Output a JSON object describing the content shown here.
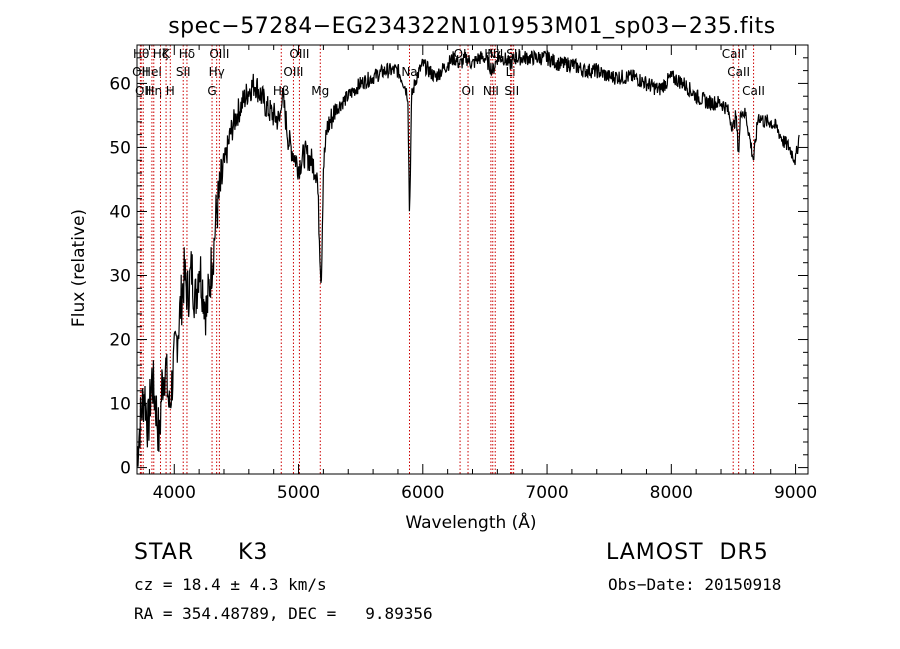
{
  "chart_data": {
    "type": "line",
    "title": "spec−57284−EG234322N101953M01_sp03−235.fits",
    "xlabel": "Wavelength (Å)",
    "ylabel": "Flux (relative)",
    "xlim": [
      3700,
      9100
    ],
    "ylim": [
      -1,
      66
    ],
    "xticks": [
      "4000",
      "5000",
      "6000",
      "7000",
      "8000",
      "9000"
    ],
    "yticks": [
      "0",
      "10",
      "20",
      "30",
      "40",
      "50",
      "60"
    ],
    "grid": false,
    "series": [
      {
        "x": [
          3700,
          3730,
          3760,
          3790,
          3820,
          3850,
          3880,
          3900,
          3930,
          3960,
          3990,
          4020,
          4050,
          4080,
          4110,
          4140,
          4170,
          4200,
          4230,
          4260,
          4290,
          4320,
          4340,
          4360,
          4400,
          4450,
          4500,
          4550,
          4600,
          4650,
          4700,
          4750,
          4800,
          4850,
          4861,
          4880,
          4920,
          4960,
          5000,
          5050,
          5100,
          5150,
          5170,
          5183,
          5200,
          5230,
          5300,
          5400,
          5500,
          5600,
          5700,
          5800,
          5850,
          5880,
          5893,
          5910,
          5950,
          6000,
          6050,
          6100,
          6150,
          6200,
          6250,
          6300,
          6350,
          6400,
          6450,
          6500,
          6563,
          6600,
          6650,
          6700,
          6750,
          6800,
          6900,
          7000,
          7100,
          7200,
          7300,
          7400,
          7500,
          7600,
          7700,
          7800,
          7900,
          8000,
          8100,
          8200,
          8300,
          8400,
          8450,
          8498,
          8520,
          8542,
          8560,
          8600,
          8662,
          8700,
          8750,
          8800,
          8850,
          8900,
          8950,
          9000,
          9030
        ],
        "y": [
          2,
          8,
          12,
          6,
          14,
          10,
          4,
          13,
          16,
          9,
          15,
          20,
          25,
          30,
          27,
          31,
          26,
          32,
          28,
          24,
          30,
          35,
          40,
          42,
          47,
          52,
          55,
          57,
          59,
          60,
          58,
          56,
          55,
          54,
          58,
          57,
          51,
          49,
          47,
          49,
          48,
          46,
          35,
          29,
          47,
          53,
          56,
          58,
          60,
          61,
          62,
          62,
          60,
          58,
          39,
          58,
          61,
          63,
          62,
          61,
          62,
          63,
          64,
          63,
          64,
          63,
          64,
          64,
          62,
          64,
          64,
          63,
          64,
          64,
          64,
          64,
          63,
          63,
          62,
          62,
          61,
          61,
          61,
          60,
          59,
          61,
          60,
          58,
          57,
          57,
          56,
          53,
          55,
          49,
          56,
          55,
          48,
          55,
          54,
          54,
          53,
          51,
          50,
          48,
          52
        ],
        "color": "#000000"
      }
    ],
    "spectral_lines": [
      {
        "wave": 3734,
        "labels": [
          "Hθ"
        ],
        "rows": [
          1
        ]
      },
      {
        "wave": 3727,
        "labels": [
          "OII"
        ],
        "rows": [
          2
        ]
      },
      {
        "wave": 3750,
        "labels": [
          "OII"
        ],
        "rows": [
          3
        ]
      },
      {
        "wave": 3820,
        "labels": [
          "HeI"
        ],
        "rows": [
          2
        ]
      },
      {
        "wave": 3835,
        "labels": [
          "Hη"
        ],
        "rows": [
          3
        ]
      },
      {
        "wave": 3889,
        "labels": [
          "Hζ"
        ],
        "rows": [
          1
        ]
      },
      {
        "wave": 3934,
        "labels": [
          "K"
        ],
        "rows": [
          1
        ]
      },
      {
        "wave": 3968,
        "labels": [
          "H"
        ],
        "rows": [
          3
        ]
      },
      {
        "wave": 4072,
        "labels": [
          "SII"
        ],
        "rows": [
          2
        ]
      },
      {
        "wave": 4102,
        "labels": [
          "Hδ"
        ],
        "rows": [
          1
        ]
      },
      {
        "wave": 4304,
        "labels": [
          "G"
        ],
        "rows": [
          3
        ]
      },
      {
        "wave": 4341,
        "labels": [
          "Hγ"
        ],
        "rows": [
          2
        ]
      },
      {
        "wave": 4363,
        "labels": [
          "OIII"
        ],
        "rows": [
          1
        ]
      },
      {
        "wave": 4861,
        "labels": [
          "Hβ"
        ],
        "rows": [
          3
        ]
      },
      {
        "wave": 4959,
        "labels": [
          "OIII"
        ],
        "rows": [
          2
        ]
      },
      {
        "wave": 5007,
        "labels": [
          "OIII"
        ],
        "rows": [
          1
        ]
      },
      {
        "wave": 5175,
        "labels": [
          "Mg"
        ],
        "rows": [
          3
        ]
      },
      {
        "wave": 5893,
        "labels": [
          "Na"
        ],
        "rows": [
          2
        ]
      },
      {
        "wave": 6300,
        "labels": [
          "OI"
        ],
        "rows": [
          1
        ]
      },
      {
        "wave": 6364,
        "labels": [
          "OI"
        ],
        "rows": [
          3
        ]
      },
      {
        "wave": 6548,
        "labels": [
          "NII"
        ],
        "rows": [
          3
        ]
      },
      {
        "wave": 6563,
        "labels": [
          "Hα"
        ],
        "rows": [
          1
        ]
      },
      {
        "wave": 6583,
        "labels": [
          "NII"
        ],
        "rows": [
          1
        ]
      },
      {
        "wave": 6707,
        "labels": [
          "Li"
        ],
        "rows": [
          2
        ]
      },
      {
        "wave": 6716,
        "labels": [
          "SII"
        ],
        "rows": [
          3
        ]
      },
      {
        "wave": 6731,
        "labels": [
          "SII"
        ],
        "rows": [
          1
        ]
      },
      {
        "wave": 8498,
        "labels": [
          "CaII"
        ],
        "rows": [
          1
        ]
      },
      {
        "wave": 8542,
        "labels": [
          "CaII"
        ],
        "rows": [
          2
        ]
      },
      {
        "wave": 8662,
        "labels": [
          "CaII"
        ],
        "rows": [
          3
        ]
      }
    ],
    "line_color": "#cc0000"
  },
  "footer": {
    "class_label": "STAR",
    "subclass": "K3",
    "survey": "LAMOST  DR5",
    "cz": "cz = 18.4 ± 4.3 km/s",
    "obs_date": "Obs−Date: 20150918",
    "radec": "RA = 354.48789, DEC =   9.89356"
  }
}
